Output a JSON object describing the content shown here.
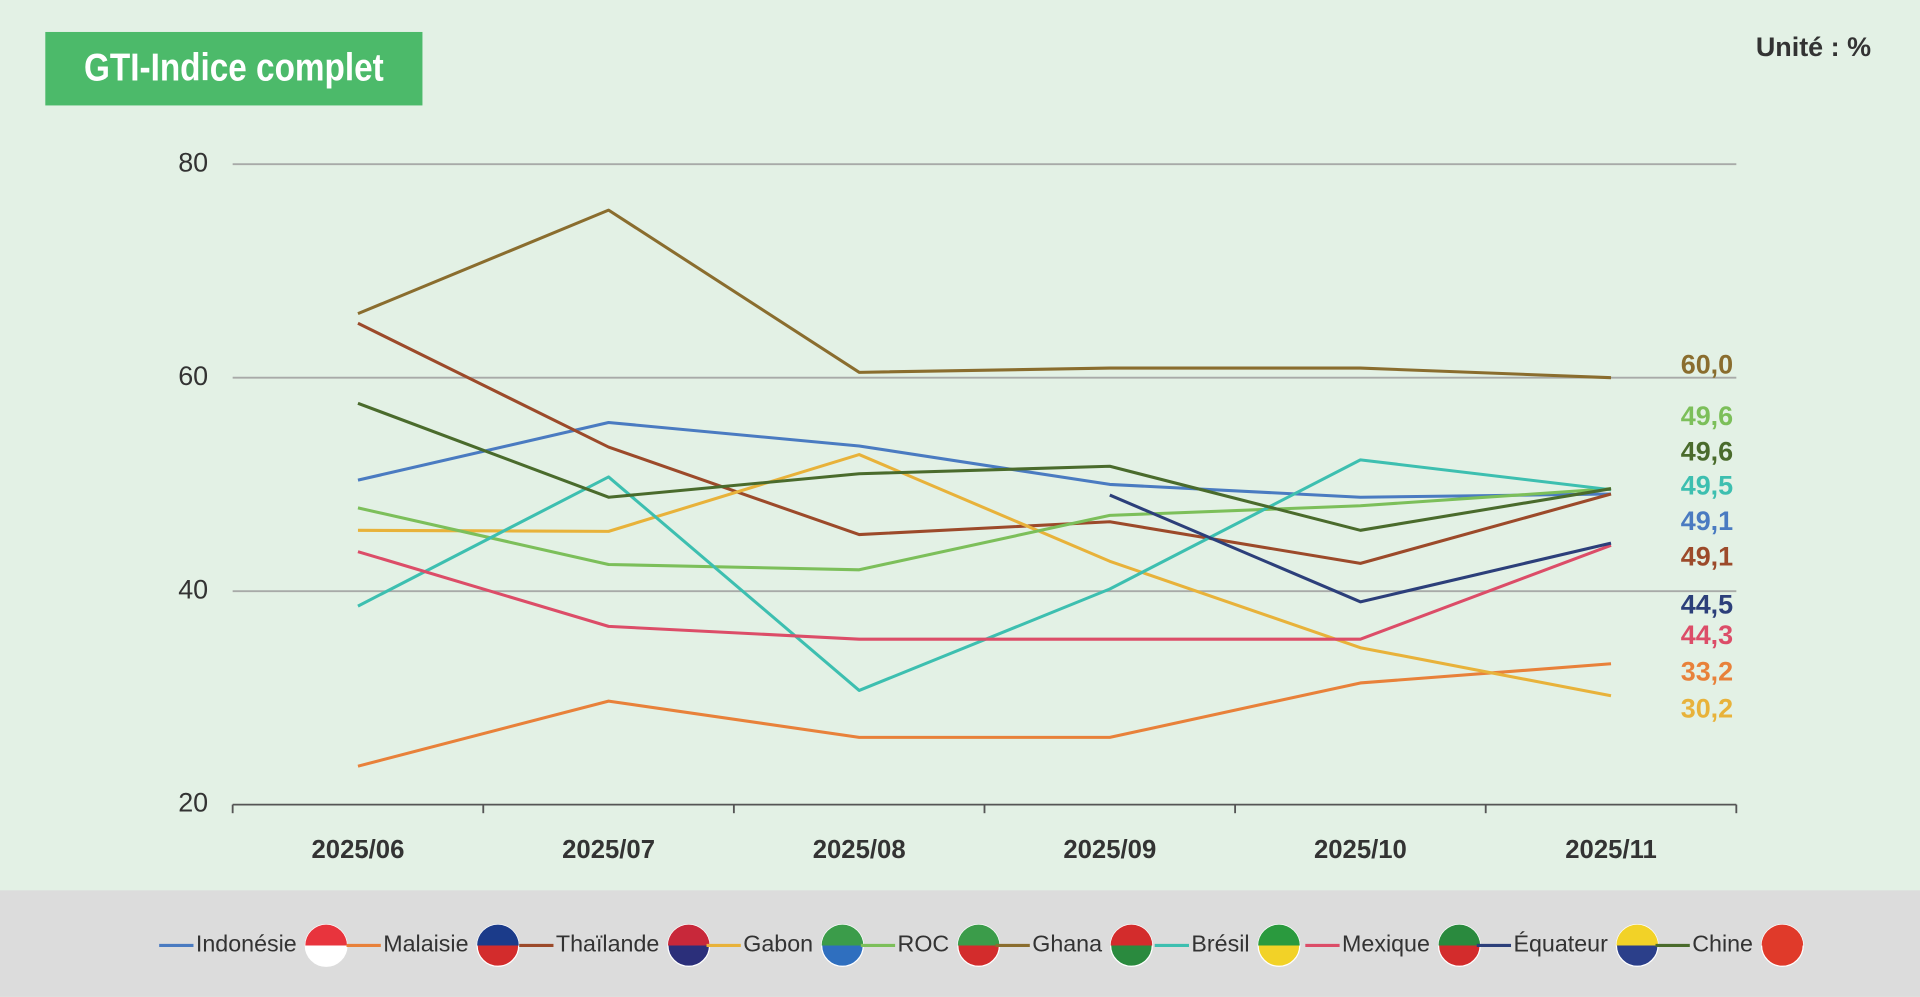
{
  "chart_data": {
    "type": "line",
    "title": "GTI-Indice complet",
    "unit_label": "Unité : %",
    "categories": [
      "2025/06",
      "2025/07",
      "2025/08",
      "2025/09",
      "2025/10",
      "2025/11"
    ],
    "ylim": [
      20,
      80
    ],
    "yticks": [
      20,
      40,
      60,
      80
    ],
    "grid": true,
    "series": [
      {
        "name": "Indonésie",
        "color": "#4a7bc1",
        "values": [
          50.4,
          55.8,
          53.6,
          50.0,
          48.8,
          49.1
        ],
        "value_labels": [
          null,
          null,
          null,
          null,
          null,
          "49,1"
        ]
      },
      {
        "name": "Malaisie",
        "color": "#e8813a",
        "values": [
          23.6,
          29.7,
          26.3,
          26.3,
          31.4,
          33.2
        ],
        "value_labels": [
          null,
          null,
          null,
          null,
          null,
          "33,2"
        ]
      },
      {
        "name": "Thaïlande",
        "color": "#9c4a2a",
        "values": [
          65.1,
          53.5,
          45.3,
          46.5,
          42.6,
          49.1
        ],
        "value_labels": [
          null,
          null,
          null,
          null,
          null,
          "49,1"
        ]
      },
      {
        "name": "Gabon",
        "color": "#e8b23a",
        "values": [
          45.7,
          45.6,
          52.8,
          42.8,
          34.7,
          30.2
        ],
        "value_labels": [
          null,
          null,
          null,
          null,
          null,
          "30,2"
        ]
      },
      {
        "name": "ROC",
        "color": "#7cbf5a",
        "values": [
          47.8,
          42.5,
          42.0,
          47.1,
          48.0,
          49.6
        ],
        "value_labels": [
          null,
          null,
          null,
          null,
          null,
          "49,6"
        ]
      },
      {
        "name": "Ghana",
        "color": "#8a6d2e",
        "values": [
          66.0,
          75.7,
          60.5,
          60.9,
          60.9,
          60.0
        ],
        "value_labels": [
          null,
          null,
          null,
          null,
          null,
          "60,0"
        ]
      },
      {
        "name": "Brésil",
        "color": "#3dbfb0",
        "values": [
          38.6,
          50.7,
          30.7,
          40.2,
          52.3,
          49.5
        ],
        "value_labels": [
          null,
          null,
          null,
          null,
          null,
          "49,5"
        ]
      },
      {
        "name": "Mexique",
        "color": "#dc4d68",
        "values": [
          43.7,
          36.7,
          35.5,
          35.5,
          35.5,
          44.3
        ],
        "value_labels": [
          null,
          null,
          null,
          null,
          null,
          "44,3"
        ]
      },
      {
        "name": "Équateur",
        "color": "#2c3f7a",
        "values": [
          null,
          null,
          null,
          49.0,
          39.0,
          44.5
        ],
        "value_labels": [
          null,
          null,
          null,
          null,
          null,
          "44,5"
        ]
      },
      {
        "name": "Chine",
        "color": "#4a6b2c",
        "values": [
          57.6,
          48.8,
          51.0,
          51.7,
          45.7,
          49.6
        ],
        "value_labels": [
          null,
          null,
          null,
          null,
          null,
          "49,6"
        ]
      }
    ]
  }
}
